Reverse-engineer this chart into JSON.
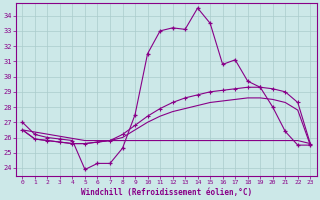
{
  "xlabel": "Windchill (Refroidissement éolien,°C)",
  "bg_color": "#cce8e8",
  "grid_color": "#aacccc",
  "line_color": "#880088",
  "xlim": [
    -0.5,
    23.5
  ],
  "ylim": [
    23.5,
    34.8
  ],
  "yticks": [
    24,
    25,
    26,
    27,
    28,
    29,
    30,
    31,
    32,
    33,
    34
  ],
  "xticks": [
    0,
    1,
    2,
    3,
    4,
    5,
    6,
    7,
    8,
    9,
    10,
    11,
    12,
    13,
    14,
    15,
    16,
    17,
    18,
    19,
    20,
    21,
    22,
    23
  ],
  "series1_x": [
    0,
    1,
    2,
    3,
    4,
    5,
    6,
    7,
    8,
    9,
    10,
    11,
    12,
    13,
    14,
    15,
    16,
    17,
    18,
    19,
    20,
    21,
    22,
    23
  ],
  "series1_y": [
    27.0,
    26.2,
    26.0,
    25.9,
    25.8,
    23.9,
    24.3,
    24.3,
    25.3,
    27.5,
    31.5,
    33.0,
    33.2,
    33.1,
    34.5,
    33.5,
    30.8,
    31.1,
    29.7,
    29.3,
    28.0,
    26.4,
    25.5,
    25.5
  ],
  "series2_x": [
    0,
    1,
    2,
    3,
    4,
    5,
    6,
    7,
    8,
    9,
    10,
    11,
    12,
    13,
    14,
    15,
    16,
    17,
    18,
    19,
    20,
    21,
    22,
    23
  ],
  "series2_y": [
    26.5,
    25.9,
    25.8,
    25.7,
    25.6,
    25.6,
    25.7,
    25.8,
    26.2,
    26.8,
    27.4,
    27.9,
    28.3,
    28.6,
    28.8,
    29.0,
    29.1,
    29.2,
    29.3,
    29.3,
    29.2,
    29.0,
    28.3,
    25.6
  ],
  "series3_x": [
    0,
    1,
    2,
    3,
    4,
    5,
    6,
    7,
    8,
    9,
    10,
    11,
    12,
    13,
    14,
    15,
    16,
    17,
    18,
    19,
    20,
    21,
    22,
    23
  ],
  "series3_y": [
    26.5,
    25.9,
    25.8,
    25.7,
    25.6,
    25.6,
    25.7,
    25.8,
    26.0,
    26.5,
    27.0,
    27.4,
    27.7,
    27.9,
    28.1,
    28.3,
    28.4,
    28.5,
    28.6,
    28.6,
    28.5,
    28.3,
    27.8,
    25.5
  ],
  "series4_x": [
    0,
    5,
    6,
    7,
    8,
    9,
    10,
    11,
    12,
    13,
    14,
    15,
    16,
    17,
    18,
    19,
    20,
    21,
    22,
    23
  ],
  "series4_y": [
    26.5,
    25.8,
    25.8,
    25.8,
    25.8,
    25.8,
    25.8,
    25.8,
    25.8,
    25.8,
    25.8,
    25.8,
    25.8,
    25.8,
    25.8,
    25.8,
    25.8,
    25.8,
    25.8,
    25.6
  ]
}
